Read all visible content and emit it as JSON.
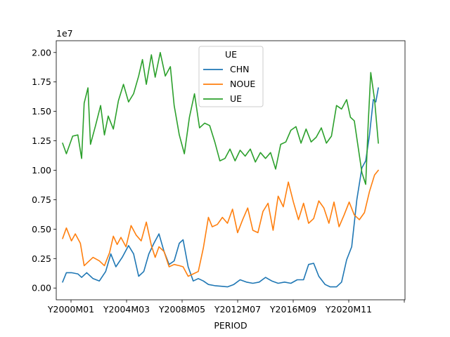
{
  "chart_data": {
    "type": "line",
    "title": "",
    "xlabel": "PERIOD",
    "ylabel": "",
    "offset_text": "1e7",
    "x_tick_labels": [
      "Y2000M01",
      "Y2004M03",
      "Y2008M05",
      "Y2012M07",
      "Y2016M09",
      "Y2020M11",
      ""
    ],
    "y_ticks": [
      0,
      2500000,
      5000000,
      7500000,
      10000000,
      12500000,
      15000000,
      17500000,
      20000000
    ],
    "y_tick_labels": [
      "0.00",
      "0.25",
      "0.50",
      "0.75",
      "1.00",
      "1.25",
      "1.50",
      "1.75",
      "2.00"
    ],
    "ylim": [
      -1000000,
      21000000
    ],
    "xlim": [
      1999.5,
      2027.0
    ],
    "grid": false,
    "legend": {
      "title": "UE",
      "placement": "top-center"
    },
    "series": [
      {
        "name": "CHN",
        "color": "#1f77b4",
        "points": [
          [
            2000.0,
            500000
          ],
          [
            2000.3,
            1300000
          ],
          [
            2000.7,
            1300000
          ],
          [
            2001.2,
            1200000
          ],
          [
            2001.5,
            900000
          ],
          [
            2001.9,
            1300000
          ],
          [
            2002.4,
            800000
          ],
          [
            2002.9,
            600000
          ],
          [
            2003.4,
            1400000
          ],
          [
            2003.8,
            2900000
          ],
          [
            2004.2,
            1800000
          ],
          [
            2004.7,
            2600000
          ],
          [
            2005.2,
            3600000
          ],
          [
            2005.6,
            2900000
          ],
          [
            2006.0,
            1000000
          ],
          [
            2006.4,
            1400000
          ],
          [
            2006.8,
            2900000
          ],
          [
            2007.2,
            3800000
          ],
          [
            2007.6,
            4600000
          ],
          [
            2008.0,
            3100000
          ],
          [
            2008.4,
            2000000
          ],
          [
            2008.8,
            2300000
          ],
          [
            2009.2,
            3800000
          ],
          [
            2009.5,
            4100000
          ],
          [
            2009.9,
            1800000
          ],
          [
            2010.3,
            600000
          ],
          [
            2010.7,
            800000
          ],
          [
            2011.1,
            600000
          ],
          [
            2011.5,
            300000
          ],
          [
            2012.0,
            200000
          ],
          [
            2012.5,
            150000
          ],
          [
            2013.0,
            100000
          ],
          [
            2013.5,
            300000
          ],
          [
            2014.0,
            700000
          ],
          [
            2014.5,
            500000
          ],
          [
            2015.0,
            400000
          ],
          [
            2015.5,
            500000
          ],
          [
            2016.0,
            900000
          ],
          [
            2016.5,
            600000
          ],
          [
            2017.0,
            400000
          ],
          [
            2017.5,
            500000
          ],
          [
            2018.0,
            400000
          ],
          [
            2018.5,
            700000
          ],
          [
            2019.0,
            700000
          ],
          [
            2019.4,
            2000000
          ],
          [
            2019.8,
            2100000
          ],
          [
            2020.2,
            1000000
          ],
          [
            2020.7,
            300000
          ],
          [
            2021.1,
            100000
          ],
          [
            2021.6,
            100000
          ],
          [
            2022.0,
            500000
          ],
          [
            2022.4,
            2400000
          ],
          [
            2022.8,
            3500000
          ],
          [
            2023.2,
            7500000
          ],
          [
            2023.6,
            10200000
          ],
          [
            2023.9,
            10800000
          ],
          [
            2024.2,
            13000000
          ],
          [
            2024.5,
            16000000
          ],
          [
            2024.7,
            15800000
          ],
          [
            2024.9,
            17000000
          ]
        ]
      },
      {
        "name": "NOUE",
        "color": "#ff7f0e",
        "points": [
          [
            2000.0,
            4200000
          ],
          [
            2000.3,
            5100000
          ],
          [
            2000.7,
            4000000
          ],
          [
            2001.0,
            4600000
          ],
          [
            2001.4,
            3800000
          ],
          [
            2001.7,
            1900000
          ],
          [
            2002.0,
            2200000
          ],
          [
            2002.4,
            2600000
          ],
          [
            2002.9,
            2300000
          ],
          [
            2003.3,
            1900000
          ],
          [
            2003.7,
            3000000
          ],
          [
            2004.0,
            4400000
          ],
          [
            2004.3,
            3700000
          ],
          [
            2004.6,
            4300000
          ],
          [
            2005.0,
            3500000
          ],
          [
            2005.4,
            5300000
          ],
          [
            2005.8,
            4500000
          ],
          [
            2006.2,
            4000000
          ],
          [
            2006.6,
            5600000
          ],
          [
            2007.0,
            3600000
          ],
          [
            2007.3,
            2600000
          ],
          [
            2007.6,
            3500000
          ],
          [
            2008.0,
            3100000
          ],
          [
            2008.4,
            1800000
          ],
          [
            2008.8,
            2000000
          ],
          [
            2009.2,
            1900000
          ],
          [
            2009.5,
            1800000
          ],
          [
            2009.9,
            1000000
          ],
          [
            2010.3,
            1200000
          ],
          [
            2010.7,
            1400000
          ],
          [
            2011.1,
            3400000
          ],
          [
            2011.5,
            6000000
          ],
          [
            2011.8,
            5200000
          ],
          [
            2012.2,
            5400000
          ],
          [
            2012.6,
            6000000
          ],
          [
            2013.0,
            5500000
          ],
          [
            2013.4,
            6700000
          ],
          [
            2013.8,
            4700000
          ],
          [
            2014.2,
            5800000
          ],
          [
            2014.6,
            6800000
          ],
          [
            2015.0,
            4900000
          ],
          [
            2015.4,
            4700000
          ],
          [
            2015.8,
            6500000
          ],
          [
            2016.2,
            7200000
          ],
          [
            2016.6,
            4900000
          ],
          [
            2017.0,
            7800000
          ],
          [
            2017.4,
            6900000
          ],
          [
            2017.8,
            9000000
          ],
          [
            2018.2,
            7300000
          ],
          [
            2018.6,
            5800000
          ],
          [
            2019.0,
            7200000
          ],
          [
            2019.4,
            5500000
          ],
          [
            2019.8,
            5900000
          ],
          [
            2020.2,
            7400000
          ],
          [
            2020.6,
            6800000
          ],
          [
            2021.0,
            5500000
          ],
          [
            2021.4,
            7300000
          ],
          [
            2021.8,
            5200000
          ],
          [
            2022.2,
            6200000
          ],
          [
            2022.6,
            7300000
          ],
          [
            2023.0,
            6200000
          ],
          [
            2023.4,
            5800000
          ],
          [
            2023.8,
            6400000
          ],
          [
            2024.2,
            8200000
          ],
          [
            2024.6,
            9600000
          ],
          [
            2024.9,
            10000000
          ]
        ]
      },
      {
        "name": "UE",
        "color": "#2ca02c",
        "points": [
          [
            2000.0,
            12300000
          ],
          [
            2000.3,
            11400000
          ],
          [
            2000.8,
            12900000
          ],
          [
            2001.2,
            13000000
          ],
          [
            2001.5,
            11000000
          ],
          [
            2001.7,
            15700000
          ],
          [
            2002.0,
            17000000
          ],
          [
            2002.2,
            12200000
          ],
          [
            2002.6,
            13800000
          ],
          [
            2003.0,
            15500000
          ],
          [
            2003.3,
            13000000
          ],
          [
            2003.6,
            14600000
          ],
          [
            2004.0,
            13500000
          ],
          [
            2004.4,
            15900000
          ],
          [
            2004.8,
            17300000
          ],
          [
            2005.2,
            15800000
          ],
          [
            2005.6,
            16500000
          ],
          [
            2006.0,
            18000000
          ],
          [
            2006.3,
            19400000
          ],
          [
            2006.6,
            17300000
          ],
          [
            2007.0,
            19800000
          ],
          [
            2007.3,
            17900000
          ],
          [
            2007.7,
            20000000
          ],
          [
            2008.1,
            18000000
          ],
          [
            2008.5,
            18800000
          ],
          [
            2008.8,
            15500000
          ],
          [
            2009.2,
            13000000
          ],
          [
            2009.6,
            11400000
          ],
          [
            2010.0,
            14500000
          ],
          [
            2010.4,
            16500000
          ],
          [
            2010.8,
            13600000
          ],
          [
            2011.2,
            14000000
          ],
          [
            2011.6,
            13800000
          ],
          [
            2012.0,
            12400000
          ],
          [
            2012.4,
            10800000
          ],
          [
            2012.8,
            11000000
          ],
          [
            2013.2,
            11800000
          ],
          [
            2013.6,
            10800000
          ],
          [
            2014.0,
            11700000
          ],
          [
            2014.4,
            11200000
          ],
          [
            2014.8,
            11800000
          ],
          [
            2015.2,
            10700000
          ],
          [
            2015.6,
            11500000
          ],
          [
            2016.0,
            11000000
          ],
          [
            2016.4,
            11500000
          ],
          [
            2016.8,
            10100000
          ],
          [
            2017.2,
            12200000
          ],
          [
            2017.6,
            12400000
          ],
          [
            2018.0,
            13400000
          ],
          [
            2018.4,
            13700000
          ],
          [
            2018.8,
            12300000
          ],
          [
            2019.2,
            13500000
          ],
          [
            2019.6,
            12400000
          ],
          [
            2020.0,
            12800000
          ],
          [
            2020.4,
            13600000
          ],
          [
            2020.8,
            12300000
          ],
          [
            2021.2,
            12900000
          ],
          [
            2021.6,
            15500000
          ],
          [
            2022.0,
            15200000
          ],
          [
            2022.4,
            16000000
          ],
          [
            2022.7,
            14500000
          ],
          [
            2023.0,
            14200000
          ],
          [
            2023.3,
            12000000
          ],
          [
            2023.6,
            9800000
          ],
          [
            2023.9,
            8800000
          ],
          [
            2024.1,
            14000000
          ],
          [
            2024.3,
            18300000
          ],
          [
            2024.6,
            16000000
          ],
          [
            2024.9,
            12300000
          ]
        ]
      }
    ]
  }
}
